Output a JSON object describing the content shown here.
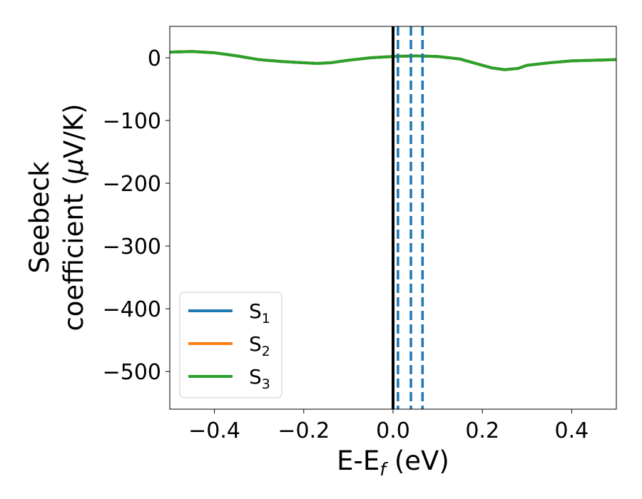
{
  "chart_data": {
    "type": "line",
    "xlabel": {
      "main": "E-E",
      "sub": "f",
      "tail": " (eV)"
    },
    "ylabel": {
      "line1": "Seebeck",
      "line2": "coefficient  (",
      "mu": "μ",
      "unit": "V/K)"
    },
    "xlim": [
      -0.5,
      0.5
    ],
    "ylim": [
      -560,
      50
    ],
    "xticks": [
      -0.4,
      -0.2,
      0.0,
      0.2,
      0.4
    ],
    "xtick_labels": [
      "−0.4",
      "−0.2",
      "0.0",
      "0.2",
      "0.4"
    ],
    "yticks": [
      0,
      -100,
      -200,
      -300,
      -400,
      -500
    ],
    "ytick_labels": [
      "0",
      "−100",
      "−200",
      "−300",
      "−400",
      "−500"
    ],
    "grid": false,
    "legend": {
      "placement": "lower-left",
      "entries": [
        {
          "base": "S",
          "sub": "1",
          "color": "#1f77b4"
        },
        {
          "base": "S",
          "sub": "2",
          "color": "#ff7f0e"
        },
        {
          "base": "S",
          "sub": "3",
          "color": "#2ca02c"
        }
      ]
    },
    "vlines": [
      {
        "x": 0.0,
        "style": "solid",
        "color": "#000000"
      },
      {
        "x": 0.011,
        "style": "dashed",
        "color": "#1f77b4"
      },
      {
        "x": 0.04,
        "style": "dashed",
        "color": "#1f77b4"
      },
      {
        "x": 0.066,
        "style": "dashed",
        "color": "#1f77b4"
      }
    ],
    "series": [
      {
        "color": "#1f77b4",
        "x": [
          -0.5,
          -0.45,
          -0.4,
          -0.35,
          -0.3,
          -0.25,
          -0.2,
          -0.17,
          -0.14,
          -0.1,
          -0.05,
          0.0,
          0.05,
          0.1,
          0.15,
          0.2,
          0.22,
          0.25,
          0.28,
          0.3,
          0.35,
          0.4,
          0.45,
          0.5
        ],
        "y": [
          9,
          10,
          8,
          3,
          -3,
          -6,
          -8,
          -9,
          -8,
          -4,
          0,
          2,
          3,
          2,
          -2,
          -12,
          -16,
          -19,
          -17,
          -12,
          -8,
          -5,
          -4,
          -3
        ]
      },
      {
        "color": "#ff7f0e",
        "x": [
          -0.5,
          -0.45,
          -0.4,
          -0.35,
          -0.3,
          -0.25,
          -0.2,
          -0.17,
          -0.14,
          -0.1,
          -0.05,
          0.0,
          0.05,
          0.1,
          0.15,
          0.2,
          0.22,
          0.25,
          0.28,
          0.3,
          0.35,
          0.4,
          0.45,
          0.5
        ],
        "y": [
          9,
          10,
          8,
          3,
          -3,
          -6,
          -8,
          -9,
          -8,
          -4,
          0,
          2,
          3,
          2,
          -2,
          -12,
          -16,
          -19,
          -17,
          -12,
          -8,
          -5,
          -4,
          -3
        ]
      },
      {
        "color": "#2ca02c",
        "x": [
          -0.5,
          -0.45,
          -0.4,
          -0.35,
          -0.3,
          -0.25,
          -0.2,
          -0.17,
          -0.14,
          -0.1,
          -0.05,
          0.0,
          0.05,
          0.1,
          0.15,
          0.2,
          0.22,
          0.25,
          0.28,
          0.3,
          0.35,
          0.4,
          0.45,
          0.5
        ],
        "y": [
          9,
          10,
          8,
          3,
          -3,
          -6,
          -8,
          -9,
          -8,
          -4,
          0,
          2,
          3,
          2,
          -2,
          -12,
          -16,
          -19,
          -17,
          -12,
          -8,
          -5,
          -4,
          -3
        ]
      }
    ]
  }
}
